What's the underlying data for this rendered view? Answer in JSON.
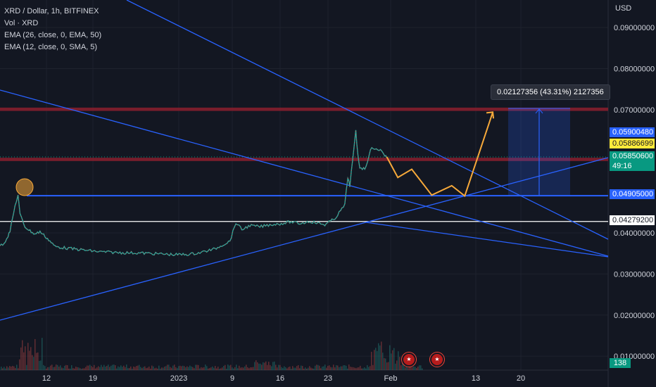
{
  "legend": {
    "title": "XRD / Dollar, 1h, BITFINEX",
    "vol": "Vol · XRD",
    "ema1": "EMA (26, close, 0, EMA, 50)",
    "ema2": "EMA (12, close, 0, SMA, 5)"
  },
  "currency": "USD",
  "measure_label": "0.02127356 (43.31%) 2127356",
  "price_tags": {
    "t1": "0.05900480",
    "t2": "0.05886699",
    "t3": "0.05850600",
    "countdown": "49:16",
    "t4": "0.04905000",
    "t5": "0.04279200",
    "volume": "138"
  },
  "colors": {
    "background": "#131722",
    "trendline": "#2962ff",
    "zone": "#8b1e2e",
    "projection": "#f7a93a",
    "candle_up": "#26a69a",
    "candle_down": "#ef5350"
  },
  "chart_data": {
    "type": "line",
    "title": "XRD / Dollar, 1h, BITFINEX",
    "x_tick_labels": [
      "12",
      "19",
      "2023",
      "9",
      "16",
      "23",
      "Feb",
      "13",
      "20"
    ],
    "y_tick_labels": [
      "0.09000000",
      "0.08000000",
      "0.07000000",
      "0.04000000",
      "0.03000000",
      "0.02000000",
      "0.01000000"
    ],
    "y_ticks": [
      0.09,
      0.08,
      0.07,
      0.04,
      0.03,
      0.02,
      0.01
    ],
    "ylim": [
      0.0066,
      0.0967
    ],
    "series": [
      {
        "values": [
          [
            0,
            0.0369
          ],
          [
            0.04,
            0.0375
          ],
          [
            0.08,
            0.0393
          ],
          [
            0.1,
            0.0404
          ],
          [
            0.15,
            0.0465
          ],
          [
            0.18,
            0.0493
          ],
          [
            0.2,
            0.0445
          ],
          [
            0.25,
            0.0415
          ],
          [
            0.3,
            0.0405
          ],
          [
            0.35,
            0.0397
          ],
          [
            0.4,
            0.0403
          ],
          [
            0.45,
            0.0392
          ],
          [
            0.5,
            0.038
          ],
          [
            0.55,
            0.0367
          ],
          [
            0.6,
            0.0365
          ],
          [
            0.7,
            0.0362
          ],
          [
            0.85,
            0.0358
          ],
          [
            1.0,
            0.0354
          ],
          [
            1.2,
            0.0352
          ],
          [
            1.4,
            0.0351
          ],
          [
            1.6,
            0.0349
          ],
          [
            1.75,
            0.0347
          ],
          [
            1.9,
            0.0348
          ],
          [
            2.0,
            0.0352
          ],
          [
            2.15,
            0.0361
          ],
          [
            2.22,
            0.037
          ],
          [
            2.3,
            0.038
          ],
          [
            2.36,
            0.0425
          ],
          [
            2.42,
            0.0408
          ],
          [
            2.5,
            0.0418
          ],
          [
            2.6,
            0.0415
          ],
          [
            2.7,
            0.042
          ],
          [
            2.8,
            0.0422
          ],
          [
            2.9,
            0.0427
          ],
          [
            3.0,
            0.0423
          ],
          [
            3.1,
            0.0428
          ],
          [
            3.25,
            0.042
          ],
          [
            3.35,
            0.0435
          ],
          [
            3.45,
            0.0468
          ],
          [
            3.48,
            0.0535
          ],
          [
            3.5,
            0.0515
          ],
          [
            3.53,
            0.058
          ],
          [
            3.56,
            0.0647
          ],
          [
            3.58,
            0.059
          ],
          [
            3.6,
            0.056
          ],
          [
            3.65,
            0.0555
          ],
          [
            3.72,
            0.061
          ],
          [
            3.78,
            0.06
          ],
          [
            3.82,
            0.0602
          ],
          [
            3.85,
            0.0588
          ],
          [
            3.87,
            0.0585
          ]
        ]
      }
    ],
    "projection": [
      [
        3.87,
        0.0585
      ],
      [
        3.98,
        0.0535
      ],
      [
        4.12,
        0.0555
      ],
      [
        4.32,
        0.0492
      ],
      [
        4.52,
        0.0515
      ],
      [
        4.65,
        0.049
      ],
      [
        4.93,
        0.0694
      ]
    ],
    "horizontal_levels": [
      0.04905,
      0.042792
    ],
    "zones": [
      [
        0.0697,
        0.0705
      ],
      [
        0.0575,
        0.0583
      ]
    ],
    "measure": {
      "from": 0.04905,
      "to": 0.07032,
      "label": "0.02127356 (43.31%) 2127356"
    }
  }
}
